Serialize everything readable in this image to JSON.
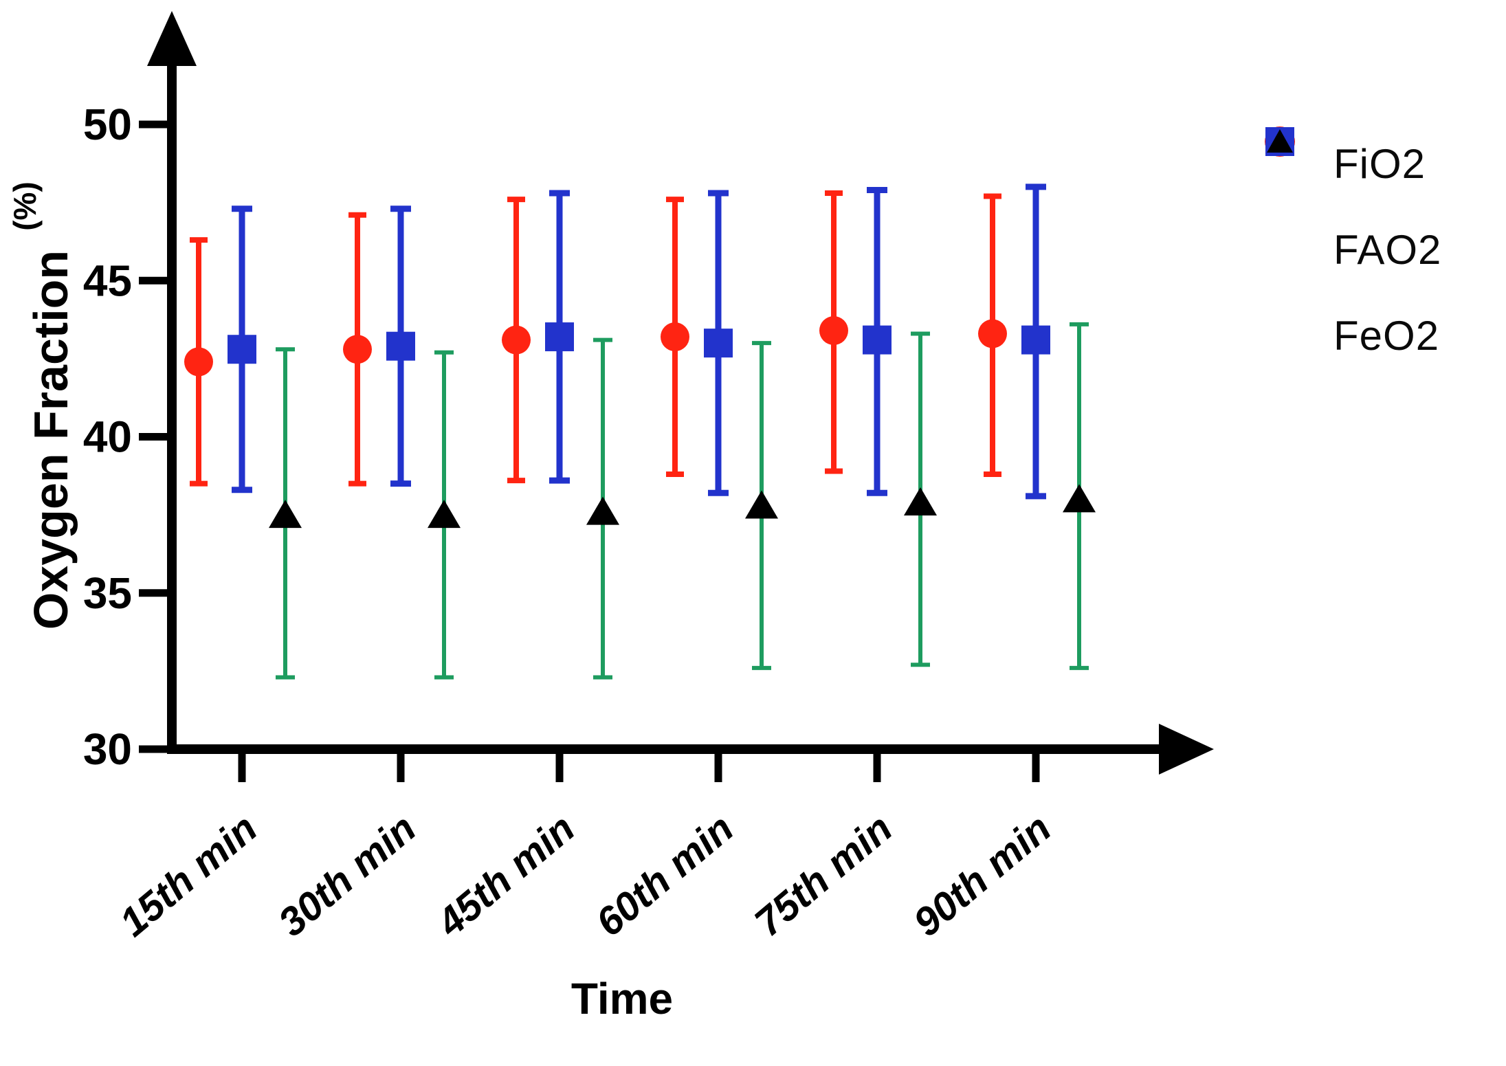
{
  "figure": {
    "background": "#ffffff",
    "y_axis_title": "Oxygen Fraction",
    "y_axis_unit": "(%)",
    "x_axis_title": "Time"
  },
  "chart_data": {
    "type": "scatter",
    "title": "",
    "xlabel": "Time",
    "ylabel": "Oxygen Fraction (%)",
    "categories": [
      "15th min",
      "30th min",
      "45th min",
      "60th min",
      "75th min",
      "90th min"
    ],
    "ylim": [
      30,
      53
    ],
    "yticks": [
      30,
      35,
      40,
      45,
      50
    ],
    "grid": false,
    "legend_position": "right",
    "axis_color": "#000000",
    "series": [
      {
        "name": "FiO2",
        "marker": "circle",
        "color": "#FF2412",
        "error_color": "#FF2412",
        "means": [
          42.4,
          42.8,
          43.1,
          43.2,
          43.4,
          43.3
        ],
        "upper": [
          46.3,
          47.1,
          47.6,
          47.6,
          47.8,
          47.7
        ],
        "lower": [
          38.5,
          38.5,
          38.6,
          38.8,
          38.9,
          38.8
        ]
      },
      {
        "name": "FAO2",
        "marker": "square",
        "color": "#2233CC",
        "error_color": "#2233CC",
        "means": [
          42.8,
          42.9,
          43.2,
          43.0,
          43.1,
          43.1
        ],
        "upper": [
          47.3,
          47.3,
          47.8,
          47.8,
          47.9,
          48.0
        ],
        "lower": [
          38.3,
          38.5,
          38.6,
          38.2,
          38.2,
          38.1
        ]
      },
      {
        "name": "FeO2",
        "marker": "triangle",
        "color": "#000000",
        "error_color": "#1E9C5F",
        "means": [
          37.5,
          37.5,
          37.6,
          37.8,
          37.9,
          38.0
        ],
        "upper": [
          42.8,
          42.7,
          43.1,
          43.0,
          43.3,
          43.6
        ],
        "lower": [
          32.3,
          32.3,
          32.3,
          32.6,
          32.7,
          32.6
        ]
      }
    ]
  }
}
